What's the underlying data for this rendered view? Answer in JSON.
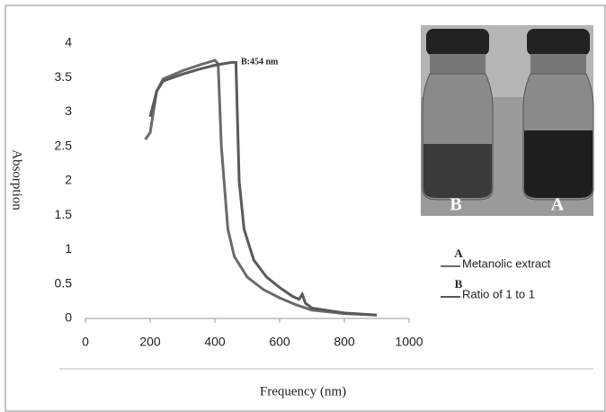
{
  "chart_data": {
    "type": "line",
    "xlabel": "Frequency (nm)",
    "ylabel": "Absorption",
    "annotation": "B:454 nm",
    "photo_labels": [
      "B",
      "A"
    ],
    "xlim": [
      0,
      1000
    ],
    "xticks": [
      0,
      200,
      400,
      600,
      800,
      1000
    ],
    "ylim": [
      0,
      4
    ],
    "yticks": [
      0,
      0.5,
      1,
      1.5,
      2,
      2.5,
      3,
      3.5,
      4
    ],
    "series": [
      {
        "name": "Metanolic extract",
        "letter": "A",
        "color": "#6b6b6b",
        "x": [
          185,
          200,
          220,
          240,
          300,
          350,
          400,
          410,
          420,
          440,
          460,
          500,
          550,
          600,
          650,
          700,
          800,
          900
        ],
        "values": [
          2.6,
          2.7,
          3.3,
          3.48,
          3.6,
          3.68,
          3.75,
          3.7,
          2.5,
          1.3,
          0.9,
          0.6,
          0.42,
          0.3,
          0.2,
          0.12,
          0.07,
          0.05
        ]
      },
      {
        "name": "Ratio of 1 to 1",
        "letter": "B",
        "color": "#5a5a5a",
        "x": [
          200,
          220,
          240,
          300,
          350,
          400,
          450,
          465,
          475,
          490,
          520,
          560,
          600,
          640,
          660,
          670,
          680,
          700,
          800,
          900
        ],
        "values": [
          2.93,
          3.3,
          3.45,
          3.55,
          3.62,
          3.68,
          3.72,
          3.72,
          2.0,
          1.3,
          0.85,
          0.6,
          0.45,
          0.32,
          0.28,
          0.35,
          0.22,
          0.15,
          0.08,
          0.05
        ]
      }
    ]
  }
}
